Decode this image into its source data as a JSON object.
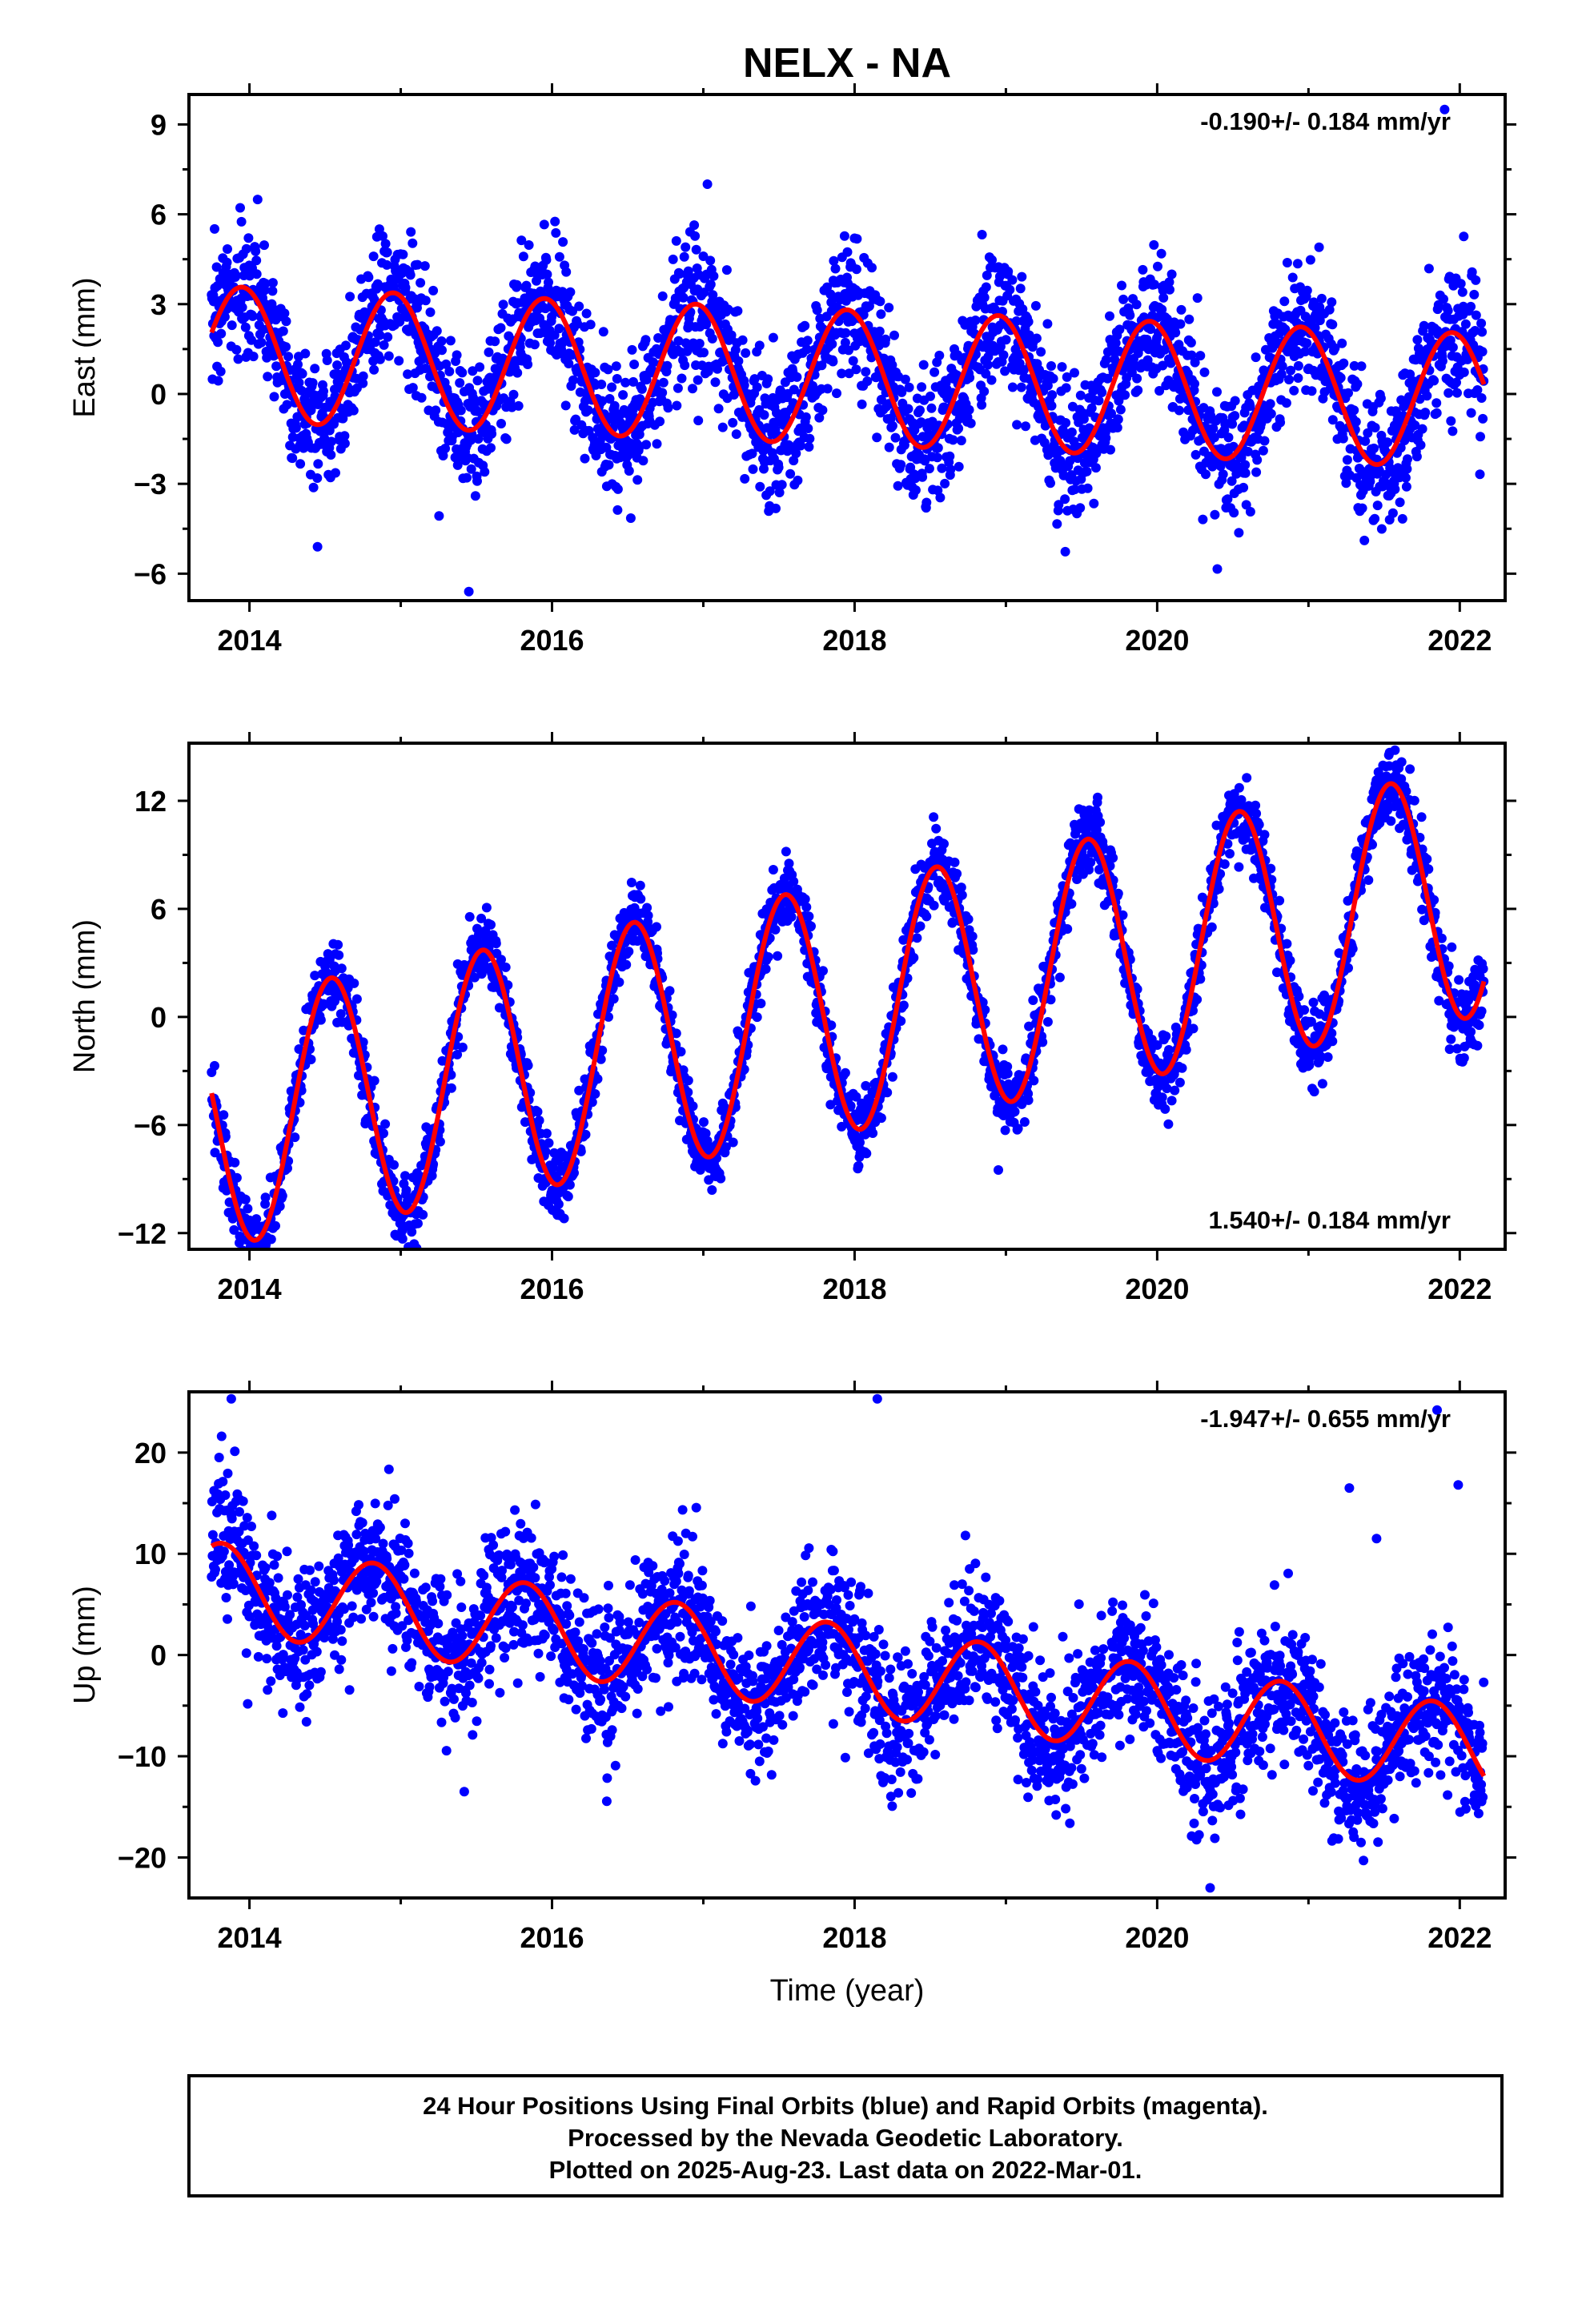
{
  "figure": {
    "title": "NELX - NA",
    "colors": {
      "final_orbits": "#0000ff",
      "fit": "#ff0000",
      "frame": "#000000"
    }
  },
  "chart_data": [
    {
      "type": "scatter",
      "panel": "east",
      "ylabel": "East (mm)",
      "xlabel": "",
      "xlim": [
        2013.6,
        2022.3
      ],
      "ylim": [
        -6.9,
        10.0
      ],
      "yticks": [
        9,
        6,
        3,
        0,
        -3,
        -6
      ],
      "ytick_labels": [
        "9",
        "6",
        "3",
        "0",
        "−3",
        "−6"
      ],
      "xticks": [
        2014,
        2016,
        2018,
        2020,
        2022
      ],
      "xtick_labels": [
        "2014",
        "2016",
        "2018",
        "2020",
        "2022"
      ],
      "minor_xticks": [
        2015,
        2017,
        2019,
        2021
      ],
      "rate_text": "-0.190+/- 0.184 mm/yr",
      "rate_position": "top-right",
      "data_range": [
        2013.75,
        2022.16
      ],
      "fit": {
        "offset": 0.55,
        "rate": -0.19,
        "amplitude": 2.25,
        "phase_year": 2013.95,
        "ref_year": 2018.0
      },
      "scatter_sd": 1.15,
      "outliers": [
        [
          2014.45,
          -5.1
        ],
        [
          2015.45,
          -6.6
        ],
        [
          2021.9,
          9.5
        ],
        [
          2021.07,
          4.9
        ],
        [
          2018.0,
          5.2
        ]
      ]
    },
    {
      "type": "scatter",
      "panel": "north",
      "ylabel": "North (mm)",
      "xlabel": "",
      "xlim": [
        2013.6,
        2022.3
      ],
      "ylim": [
        -12.9,
        15.2
      ],
      "yticks": [
        12,
        6,
        0,
        -6,
        -12
      ],
      "ytick_labels": [
        "12",
        "6",
        "0",
        "−6",
        "−12"
      ],
      "xticks": [
        2014,
        2016,
        2018,
        2020,
        2022
      ],
      "xtick_labels": [
        "2014",
        "2016",
        "2018",
        "2020",
        "2022"
      ],
      "minor_xticks": [
        2015,
        2017,
        2019,
        2021
      ],
      "rate_text": "1.540+/- 0.184 mm/yr",
      "rate_position": "bottom-right",
      "data_range": [
        2013.75,
        2022.16
      ],
      "fit": {
        "offset": 0.6,
        "rate": 1.54,
        "amplitude": 6.9,
        "phase_year": 2013.54,
        "ref_year": 2018.0
      },
      "scatter_sd": 1.0,
      "outliers": [
        [
          2018.95,
          -8.5
        ]
      ]
    },
    {
      "type": "scatter",
      "panel": "up",
      "ylabel": "Up (mm)",
      "xlabel": "Time (year)",
      "xlim": [
        2013.6,
        2022.3
      ],
      "ylim": [
        -24.0,
        26.0
      ],
      "yticks": [
        20,
        10,
        0,
        -10,
        -20
      ],
      "ytick_labels": [
        "20",
        "10",
        "0",
        "−10",
        "−20"
      ],
      "xticks": [
        2014,
        2016,
        2018,
        2020,
        2022
      ],
      "xtick_labels": [
        "2014",
        "2016",
        "2018",
        "2020",
        "2022"
      ],
      "minor_xticks": [
        2015,
        2017,
        2019,
        2021
      ],
      "rate_text": "-1.947+/- 0.655 mm/yr",
      "rate_position": "top-right",
      "data_range": [
        2013.75,
        2022.16
      ],
      "fit": {
        "offset": -1.5,
        "rate": -1.947,
        "amplitude": 4.4,
        "phase_year": 2013.82,
        "ref_year": 2018.0
      },
      "scatter_sd": 3.4,
      "outliers": [
        [
          2013.88,
          25.3
        ],
        [
          2018.15,
          25.3
        ],
        [
          2021.85,
          24.2
        ],
        [
          2015.42,
          -13.5
        ],
        [
          2020.35,
          -23.0
        ],
        [
          2021.27,
          16.5
        ],
        [
          2021.99,
          16.8
        ],
        [
          2021.45,
          11.5
        ]
      ]
    }
  ],
  "footer": {
    "line1": "24 Hour Positions Using Final Orbits (blue) and Rapid Orbits (magenta).",
    "line2": "Processed by the Nevada Geodetic Laboratory.",
    "line3": "Plotted on 2025-Aug-23. Last data on 2022-Mar-01."
  }
}
